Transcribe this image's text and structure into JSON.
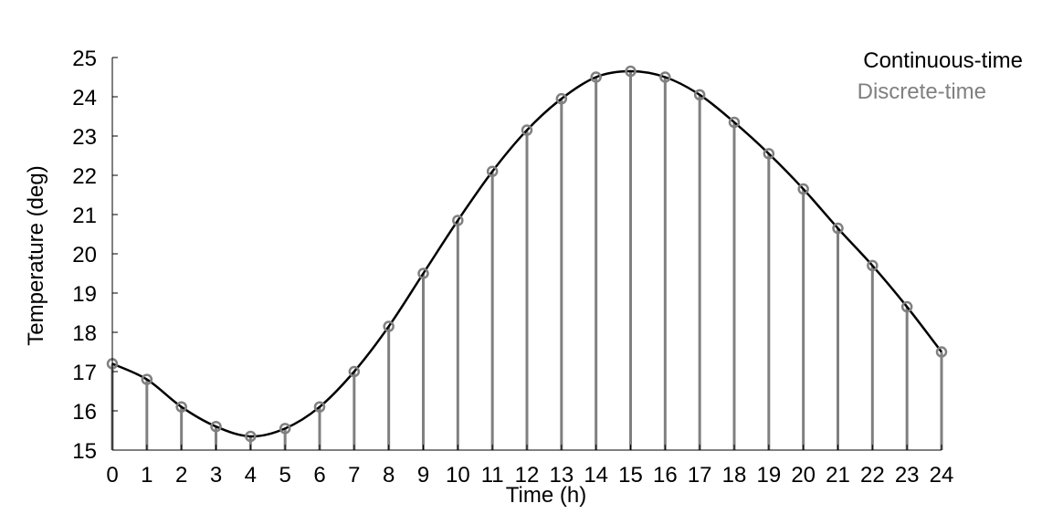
{
  "chart_data": {
    "type": "line",
    "title": "",
    "xlabel": "Time (h)",
    "ylabel": "Temperature (deg)",
    "xlim": [
      0,
      24
    ],
    "ylim": [
      15,
      25
    ],
    "x_ticks": [
      0,
      1,
      2,
      3,
      4,
      5,
      6,
      7,
      8,
      9,
      10,
      11,
      12,
      13,
      14,
      15,
      16,
      17,
      18,
      19,
      20,
      21,
      22,
      23,
      24
    ],
    "y_ticks": [
      15,
      16,
      17,
      18,
      19,
      20,
      21,
      22,
      23,
      24,
      25
    ],
    "grid": false,
    "legend_position": "top-right",
    "x": [
      0,
      1,
      2,
      3,
      4,
      5,
      6,
      7,
      8,
      9,
      10,
      11,
      12,
      13,
      14,
      15,
      16,
      17,
      18,
      19,
      20,
      21,
      22,
      23,
      24
    ],
    "series": [
      {
        "name": "Continuous-time",
        "style": "line",
        "color": "#000000",
        "values": [
          17.2,
          16.8,
          16.1,
          15.6,
          15.35,
          15.55,
          16.1,
          17.0,
          18.15,
          19.5,
          20.85,
          22.1,
          23.15,
          23.95,
          24.5,
          24.65,
          24.5,
          24.05,
          23.35,
          22.55,
          21.65,
          20.65,
          19.7,
          18.65,
          17.5
        ]
      },
      {
        "name": "Discrete-time",
        "style": "stem",
        "color": "#808080",
        "values": [
          17.2,
          16.8,
          16.1,
          15.6,
          15.35,
          15.55,
          16.1,
          17.0,
          18.15,
          19.5,
          20.85,
          22.1,
          23.15,
          23.95,
          24.5,
          24.65,
          24.5,
          24.05,
          23.35,
          22.55,
          21.65,
          20.65,
          19.7,
          18.65,
          17.5
        ]
      }
    ]
  }
}
